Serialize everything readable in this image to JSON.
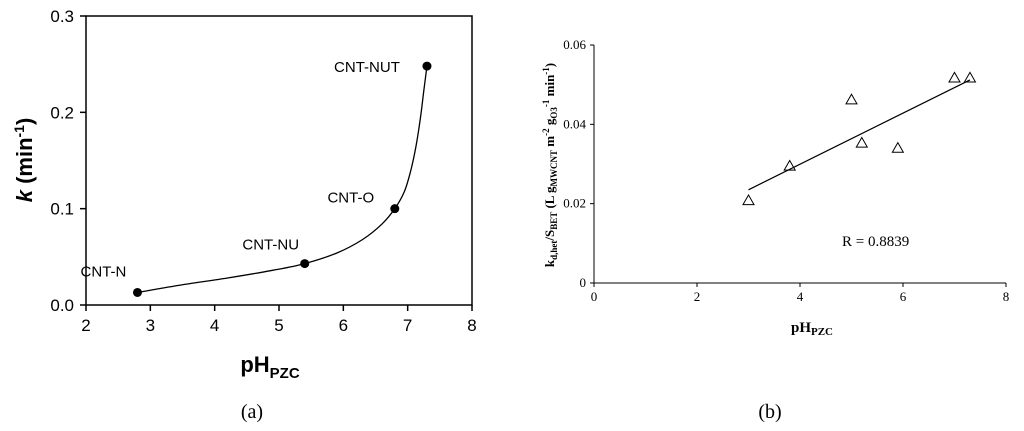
{
  "chart_data": [
    {
      "type": "scatter",
      "panel_label": "(a)",
      "xlim": [
        2,
        8
      ],
      "ylim": [
        0.0,
        0.3
      ],
      "xticks": [
        "2",
        "3",
        "4",
        "5",
        "6",
        "7",
        "8"
      ],
      "yticks": [
        "0.0",
        "0.1",
        "0.2",
        "0.3"
      ],
      "xlabel": {
        "main": "pH",
        "sub": "PZC"
      },
      "ylabel": {
        "italic": "k",
        "rest": " (min",
        "sup": "-1",
        "close": ")"
      },
      "points": [
        {
          "label": "CNT-N",
          "x": 2.8,
          "y": 0.013
        },
        {
          "label": "CNT-NU",
          "x": 5.4,
          "y": 0.043
        },
        {
          "label": "CNT-O",
          "x": 6.8,
          "y": 0.1
        },
        {
          "label": "CNT-NUT",
          "x": 7.3,
          "y": 0.248
        }
      ],
      "curve": [
        [
          2.8,
          0.013
        ],
        [
          3.5,
          0.021
        ],
        [
          4.2,
          0.028
        ],
        [
          4.9,
          0.036
        ],
        [
          5.4,
          0.043
        ],
        [
          5.9,
          0.054
        ],
        [
          6.3,
          0.068
        ],
        [
          6.6,
          0.084
        ],
        [
          6.8,
          0.1
        ],
        [
          6.95,
          0.118
        ],
        [
          7.05,
          0.14
        ],
        [
          7.13,
          0.165
        ],
        [
          7.2,
          0.195
        ],
        [
          7.25,
          0.222
        ],
        [
          7.3,
          0.248
        ]
      ],
      "grid": false,
      "marker": "filled-circle",
      "marker_color": "#000000"
    },
    {
      "type": "scatter",
      "panel_label": "(b)",
      "xlim": [
        0,
        8
      ],
      "ylim": [
        0,
        0.06
      ],
      "xticks": [
        "0",
        "2",
        "4",
        "6",
        "8"
      ],
      "yticks": [
        "0",
        "0.02",
        "0.04",
        "0.06"
      ],
      "xlabel": {
        "main": "pH",
        "sub": "PZC"
      },
      "ylabel": {
        "k": "k",
        "k_sub": "d,het",
        "s": "/S",
        "s_sub": "BET",
        "l": " (L g",
        "l_sub": "MWCNT",
        "m": " m",
        "m_sup": "-2",
        "g": " g",
        "g_sub": "O3",
        "g_sup": "-1",
        "min": " min",
        "min_sup": "-1",
        "close": ")"
      },
      "points": [
        {
          "x": 3.0,
          "y": 0.0208
        },
        {
          "x": 3.8,
          "y": 0.0295
        },
        {
          "x": 5.0,
          "y": 0.0462
        },
        {
          "x": 5.2,
          "y": 0.0353
        },
        {
          "x": 5.9,
          "y": 0.034
        },
        {
          "x": 7.0,
          "y": 0.0517
        },
        {
          "x": 7.3,
          "y": 0.0517
        }
      ],
      "fit_line": [
        [
          3.0,
          0.0235
        ],
        [
          7.3,
          0.0512
        ]
      ],
      "annotation": "R = 0.8839",
      "grid": false,
      "marker": "open-triangle",
      "marker_color": "#000000"
    }
  ]
}
